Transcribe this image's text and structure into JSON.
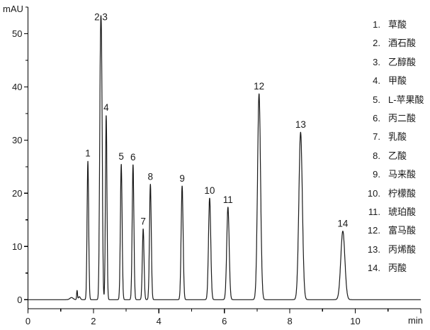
{
  "chart_data": {
    "type": "line",
    "title": "",
    "xlabel": "min",
    "ylabel": "mAU",
    "xlim": [
      0,
      12
    ],
    "ylim": [
      -1.7,
      55
    ],
    "grid": false,
    "legend_position": "right",
    "colors": {
      "background": "#ffffff",
      "trace": "#1a1a1a",
      "axis": "#000000",
      "text": "#1a1a1a"
    },
    "x_axis": {
      "major_ticks": [
        {
          "t": 0,
          "label": "0"
        },
        {
          "t": 2,
          "label": "2"
        },
        {
          "t": 4,
          "label": "4"
        },
        {
          "t": 6,
          "label": "6"
        },
        {
          "t": 8,
          "label": "8"
        },
        {
          "t": 10,
          "label": "10"
        },
        {
          "t": 12,
          "label": ""
        }
      ],
      "minor_ticks": [
        1,
        3,
        5,
        7,
        9,
        11
      ]
    },
    "y_axis": {
      "major_ticks": [
        {
          "v": 0,
          "label": "0"
        },
        {
          "v": 10,
          "label": "10"
        },
        {
          "v": 20,
          "label": "20"
        },
        {
          "v": 30,
          "label": "30"
        },
        {
          "v": 40,
          "label": "40"
        },
        {
          "v": 50,
          "label": "50"
        }
      ],
      "minor_ticks": [
        5,
        15,
        25,
        35,
        45,
        55
      ]
    },
    "peaks": [
      {
        "id": "1",
        "rt_min": 1.83,
        "height_mAU": 26.1,
        "sigma_min": 0.024
      },
      {
        "id": "2",
        "rt_min": 2.21,
        "height_mAU": 36.8,
        "sigma_min": 0.025,
        "note": "co-elutes with peak 3, merged apex ~51.7 mAU"
      },
      {
        "id": "3",
        "rt_min": 2.25,
        "height_mAU": 36.8,
        "sigma_min": 0.025,
        "note": "co-elutes with peak 2"
      },
      {
        "id": "4",
        "rt_min": 2.39,
        "height_mAU": 34.7,
        "sigma_min": 0.023
      },
      {
        "id": "5",
        "rt_min": 2.85,
        "height_mAU": 25.5,
        "sigma_min": 0.026
      },
      {
        "id": "6",
        "rt_min": 3.21,
        "height_mAU": 25.4,
        "sigma_min": 0.026
      },
      {
        "id": "7",
        "rt_min": 3.52,
        "height_mAU": 13.3,
        "sigma_min": 0.026
      },
      {
        "id": "8",
        "rt_min": 3.74,
        "height_mAU": 21.7,
        "sigma_min": 0.027
      },
      {
        "id": "9",
        "rt_min": 4.71,
        "height_mAU": 21.4,
        "sigma_min": 0.03
      },
      {
        "id": "10",
        "rt_min": 5.55,
        "height_mAU": 19.1,
        "sigma_min": 0.034
      },
      {
        "id": "11",
        "rt_min": 6.11,
        "height_mAU": 17.4,
        "sigma_min": 0.037
      },
      {
        "id": "12",
        "rt_min": 7.06,
        "height_mAU": 38.7,
        "sigma_min": 0.046
      },
      {
        "id": "13",
        "rt_min": 8.33,
        "height_mAU": 31.5,
        "sigma_min": 0.053
      },
      {
        "id": "14",
        "rt_min": 9.62,
        "height_mAU": 12.9,
        "sigma_min": 0.062
      }
    ],
    "baseline_artifacts": [
      {
        "rt_min": 1.33,
        "height_mAU": 0.4,
        "sigma_min": 0.05
      },
      {
        "rt_min": 1.5,
        "height_mAU": 1.7,
        "sigma_min": 0.013
      },
      {
        "rt_min": 1.57,
        "height_mAU": 0.55,
        "sigma_min": 0.03
      }
    ],
    "peak_labels": [
      {
        "text": "1",
        "t": 1.83,
        "v": 26.1
      },
      {
        "text": "2,3",
        "t": 2.23,
        "v": 51.7
      },
      {
        "text": "4",
        "t": 2.39,
        "v": 34.7
      },
      {
        "text": "5",
        "t": 2.85,
        "v": 25.5
      },
      {
        "text": "6",
        "t": 3.21,
        "v": 25.4
      },
      {
        "text": "7",
        "t": 3.52,
        "v": 13.3
      },
      {
        "text": "8",
        "t": 3.74,
        "v": 21.7
      },
      {
        "text": "9",
        "t": 4.71,
        "v": 21.4
      },
      {
        "text": "10",
        "t": 5.55,
        "v": 19.1
      },
      {
        "text": "11",
        "t": 6.11,
        "v": 17.4
      },
      {
        "text": "12",
        "t": 7.06,
        "v": 38.7
      },
      {
        "text": "13",
        "t": 8.33,
        "v": 31.5
      },
      {
        "text": "14",
        "t": 9.62,
        "v": 12.9
      }
    ]
  },
  "legend": {
    "items": [
      {
        "num": "1.",
        "name": "草酸"
      },
      {
        "num": "2.",
        "name": "酒石酸"
      },
      {
        "num": "3.",
        "name": "乙醇酸"
      },
      {
        "num": "4.",
        "name": "甲酸"
      },
      {
        "num": "5.",
        "name": "L-苹果酸"
      },
      {
        "num": "6.",
        "name": "丙二酸"
      },
      {
        "num": "7.",
        "name": "乳酸"
      },
      {
        "num": "8.",
        "name": "乙酸"
      },
      {
        "num": "9.",
        "name": "马来酸"
      },
      {
        "num": "10.",
        "name": "柠檬酸"
      },
      {
        "num": "11.",
        "name": "琥珀酸"
      },
      {
        "num": "12.",
        "name": "富马酸"
      },
      {
        "num": "13.",
        "name": "丙烯酸"
      },
      {
        "num": "14.",
        "name": "丙酸"
      }
    ]
  }
}
